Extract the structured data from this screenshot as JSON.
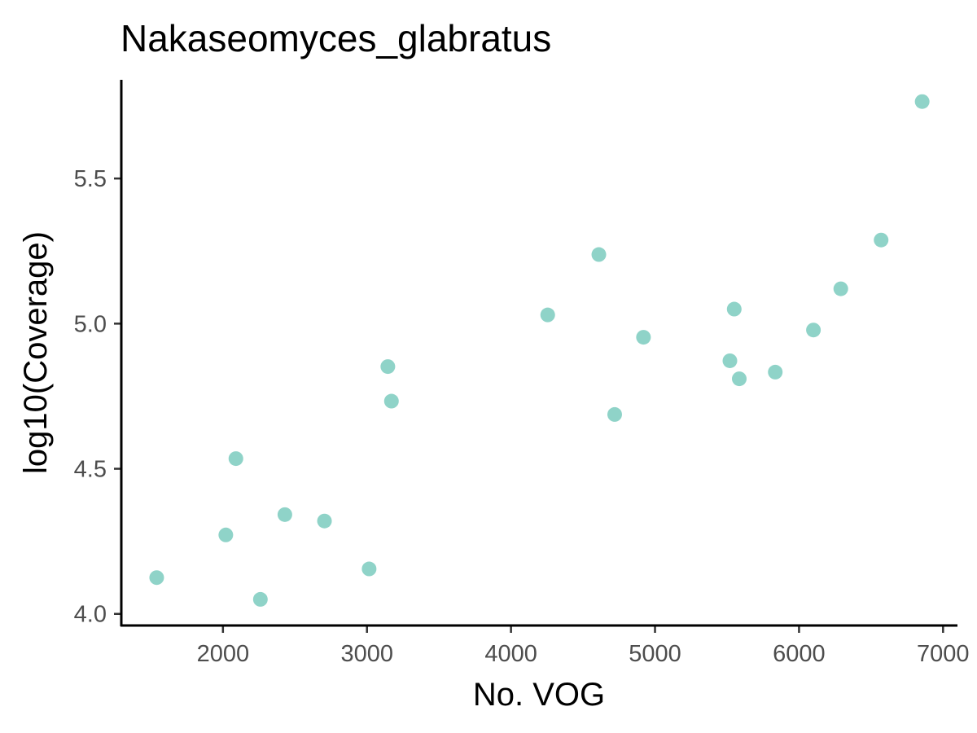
{
  "chart_data": {
    "type": "scatter",
    "title": "Nakaseomyces_glabratus",
    "xlabel": "No. VOG",
    "ylabel": "log10(Coverage)",
    "xlim": [
      1300,
      7100
    ],
    "ylim": [
      3.96,
      5.84
    ],
    "x_ticks": [
      2000,
      3000,
      4000,
      5000,
      6000,
      7000
    ],
    "x_tick_labels": [
      "2000",
      "3000",
      "4000",
      "5000",
      "6000",
      "7000"
    ],
    "y_ticks": [
      4.0,
      4.5,
      5.0,
      5.5
    ],
    "y_tick_labels": [
      "4.0",
      "4.5",
      "5.0",
      "5.5"
    ],
    "grid": false,
    "legend": "none",
    "point_color": "#8fd3c8",
    "points": [
      {
        "x": 1540,
        "y": 4.125
      },
      {
        "x": 2020,
        "y": 4.272
      },
      {
        "x": 2090,
        "y": 4.535
      },
      {
        "x": 2260,
        "y": 4.05
      },
      {
        "x": 2430,
        "y": 4.342
      },
      {
        "x": 2705,
        "y": 4.32
      },
      {
        "x": 3015,
        "y": 4.155
      },
      {
        "x": 3145,
        "y": 4.852
      },
      {
        "x": 3170,
        "y": 4.733
      },
      {
        "x": 4255,
        "y": 5.03
      },
      {
        "x": 4610,
        "y": 5.238
      },
      {
        "x": 4720,
        "y": 4.687
      },
      {
        "x": 4920,
        "y": 4.953
      },
      {
        "x": 5520,
        "y": 4.872
      },
      {
        "x": 5550,
        "y": 5.05
      },
      {
        "x": 5585,
        "y": 4.81
      },
      {
        "x": 5835,
        "y": 4.833
      },
      {
        "x": 6100,
        "y": 4.978
      },
      {
        "x": 6290,
        "y": 5.12
      },
      {
        "x": 6570,
        "y": 5.288
      },
      {
        "x": 6855,
        "y": 5.765
      }
    ]
  }
}
